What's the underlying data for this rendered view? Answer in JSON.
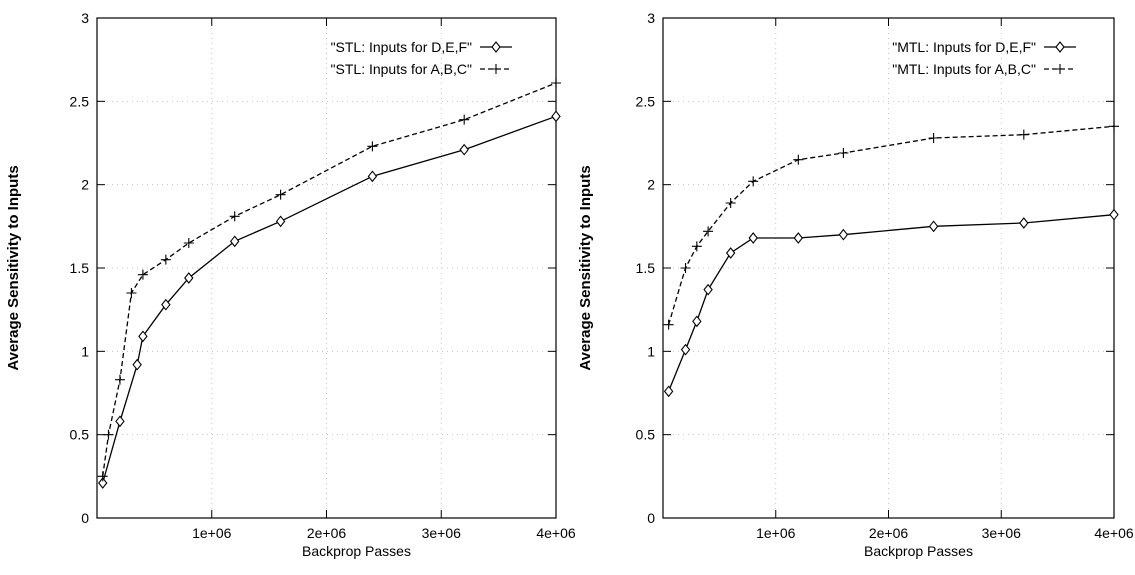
{
  "chart_data": [
    {
      "type": "line",
      "ylabel": "Average Sensitivity to Inputs",
      "xlabel": "Backprop Passes",
      "xlim": [
        0,
        4000000
      ],
      "ylim": [
        0,
        3
      ],
      "x_ticks": [
        1000000,
        2000000,
        3000000,
        4000000
      ],
      "x_tick_labels": [
        "1e+06",
        "2e+06",
        "3e+06",
        "4e+06"
      ],
      "y_ticks": [
        0,
        0.5,
        1,
        1.5,
        2,
        2.5,
        3
      ],
      "y_tick_labels": [
        "0",
        "0.5",
        "1",
        "1.5",
        "2",
        "2.5",
        "3"
      ],
      "legend_position": "top-right",
      "series": [
        {
          "name": "\"STL: Inputs for D,E,F\"",
          "line_style": "solid",
          "marker": "diamond",
          "x": [
            50000,
            200000,
            350000,
            400000,
            600000,
            800000,
            1200000,
            1600000,
            2400000,
            3200000,
            4000000
          ],
          "y": [
            0.21,
            0.58,
            0.92,
            1.09,
            1.28,
            1.44,
            1.66,
            1.78,
            2.05,
            2.21,
            2.41
          ]
        },
        {
          "name": "\"STL: Inputs for A,B,C\"",
          "line_style": "dashed",
          "marker": "plus",
          "x": [
            50000,
            100000,
            200000,
            300000,
            400000,
            600000,
            800000,
            1200000,
            1600000,
            2400000,
            3200000,
            4000000
          ],
          "y": [
            0.25,
            0.5,
            0.83,
            1.35,
            1.46,
            1.55,
            1.65,
            1.81,
            1.94,
            2.23,
            2.39,
            2.61
          ]
        }
      ]
    },
    {
      "type": "line",
      "ylabel": "Average Sensitivity to Inputs",
      "xlabel": "Backprop Passes",
      "xlim": [
        0,
        4000000
      ],
      "ylim": [
        0,
        3
      ],
      "x_ticks": [
        1000000,
        2000000,
        3000000,
        4000000
      ],
      "x_tick_labels": [
        "1e+06",
        "2e+06",
        "3e+06",
        "4e+06"
      ],
      "y_ticks": [
        0,
        0.5,
        1,
        1.5,
        2,
        2.5,
        3
      ],
      "y_tick_labels": [
        "0",
        "0.5",
        "1",
        "1.5",
        "2",
        "2.5",
        "3"
      ],
      "legend_position": "top-right",
      "series": [
        {
          "name": "\"MTL: Inputs for D,E,F\"",
          "line_style": "solid",
          "marker": "diamond",
          "x": [
            50000,
            200000,
            300000,
            400000,
            600000,
            800000,
            1200000,
            1600000,
            2400000,
            3200000,
            4000000
          ],
          "y": [
            0.76,
            1.01,
            1.18,
            1.37,
            1.59,
            1.68,
            1.68,
            1.7,
            1.75,
            1.77,
            1.82
          ]
        },
        {
          "name": "\"MTL: Inputs for A,B,C\"",
          "line_style": "dashed",
          "marker": "plus",
          "x": [
            50000,
            200000,
            300000,
            400000,
            600000,
            800000,
            1200000,
            1600000,
            2400000,
            3200000,
            4000000
          ],
          "y": [
            1.16,
            1.5,
            1.63,
            1.72,
            1.89,
            2.02,
            2.15,
            2.19,
            2.28,
            2.3,
            2.35
          ]
        }
      ]
    }
  ]
}
